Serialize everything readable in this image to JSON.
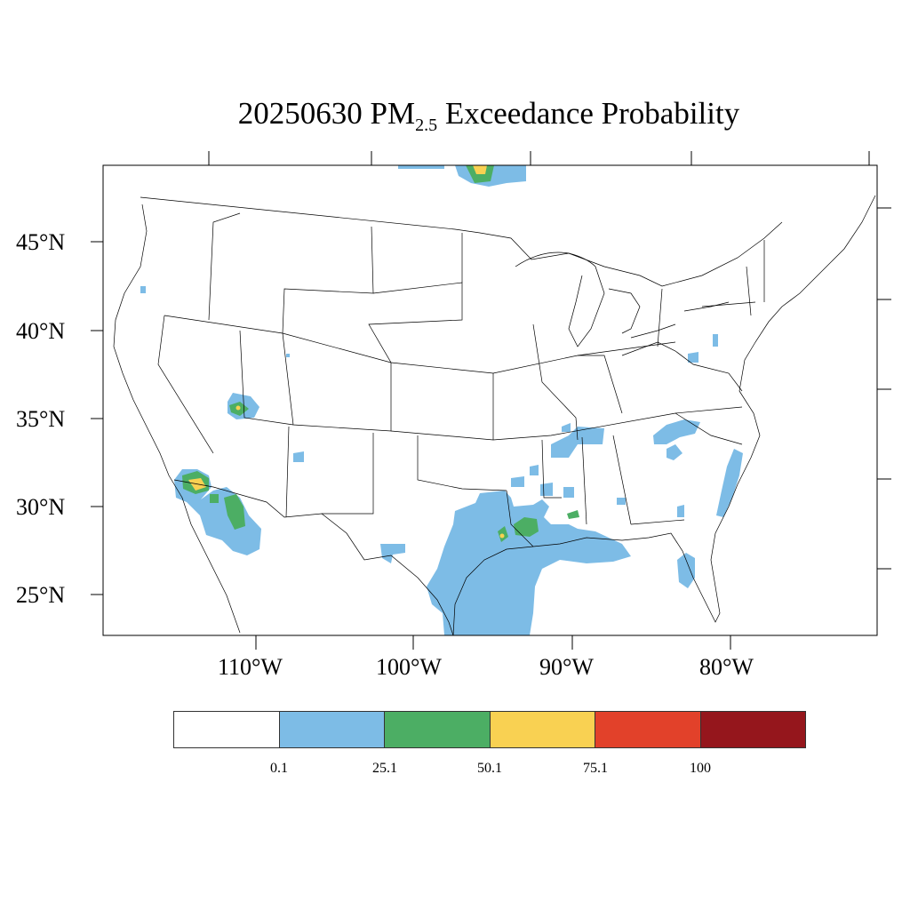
{
  "title": {
    "date": "20250630",
    "species": "PM",
    "subscript": "2.5",
    "suffix": "Exceedance Probability"
  },
  "latitude_labels": [
    "45°N",
    "40°N",
    "35°N",
    "30°N",
    "25°N"
  ],
  "longitude_labels": [
    "110°W",
    "100°W",
    "90°W",
    "80°W"
  ],
  "legend": {
    "colors": [
      "#ffffff",
      "#7dbce6",
      "#4cae64",
      "#f9d152",
      "#e2412a",
      "#95161c"
    ],
    "ticks": [
      "0.1",
      "25.1",
      "50.1",
      "75.1",
      "100"
    ]
  },
  "colors": {
    "low": "#7dbce6",
    "medium": "#4cae64",
    "high": "#f9d152"
  }
}
